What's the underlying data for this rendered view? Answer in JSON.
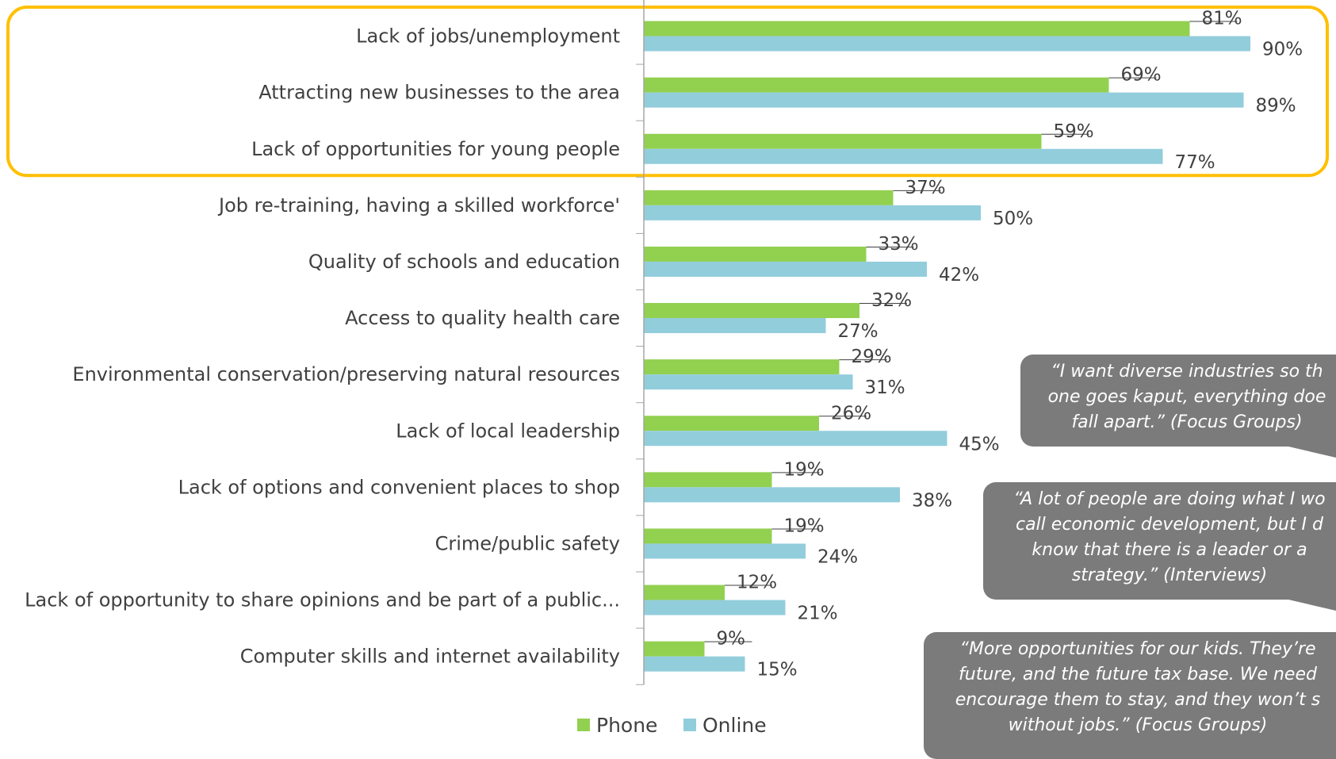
{
  "chart_data": {
    "type": "bar",
    "orientation": "horizontal",
    "categories": [
      "Lack of jobs/unemployment",
      "Attracting new businesses to the area",
      "Lack of opportunities for young people",
      "Job re-training, having a skilled workforce'",
      "Quality of schools and education",
      "Access to quality health care",
      "Environmental conservation/preserving natural resources",
      "Lack of local leadership",
      "Lack of options and convenient places to shop",
      "Crime/public safety",
      "Lack of opportunity to share opinions and be part of a public...",
      "Computer skills and internet availability"
    ],
    "series": [
      {
        "name": "Phone",
        "color": "#92d050",
        "values": [
          81,
          69,
          59,
          37,
          33,
          32,
          29,
          26,
          19,
          19,
          12,
          9
        ],
        "labels": [
          "81%",
          "69%",
          "59%",
          "37%",
          "33%",
          "32%",
          "29%",
          "26%",
          "19%",
          "19%",
          "12%",
          "9%"
        ]
      },
      {
        "name": "Online",
        "color": "#92cddc",
        "values": [
          90,
          89,
          77,
          50,
          42,
          27,
          31,
          45,
          38,
          24,
          21,
          15
        ],
        "labels": [
          "90%",
          "89%",
          "77%",
          "50%",
          "42%",
          "27%",
          "31%",
          "45%",
          "38%",
          "24%",
          "21%",
          "15%"
        ]
      }
    ],
    "value_unit": "%",
    "highlight": {
      "categories": [
        0,
        1,
        2
      ],
      "color": "#ffc000"
    },
    "legend_position": "bottom",
    "grid": false
  },
  "quotes": [
    {
      "lines": [
        "“I want diverse industries so th",
        "one goes kaput, everything doe",
        "fall apart.”  (Focus Groups)"
      ]
    },
    {
      "lines": [
        "“A lot of people are doing what I wo",
        "call economic development, but I d",
        "know that there is a leader or a",
        "strategy.”  (Interviews)"
      ]
    },
    {
      "lines": [
        "“More opportunities for our kids. They’re",
        "future, and the future tax base. We need",
        "encourage them to stay, and they won’t s",
        "without jobs.”  (Focus Groups)"
      ]
    }
  ]
}
